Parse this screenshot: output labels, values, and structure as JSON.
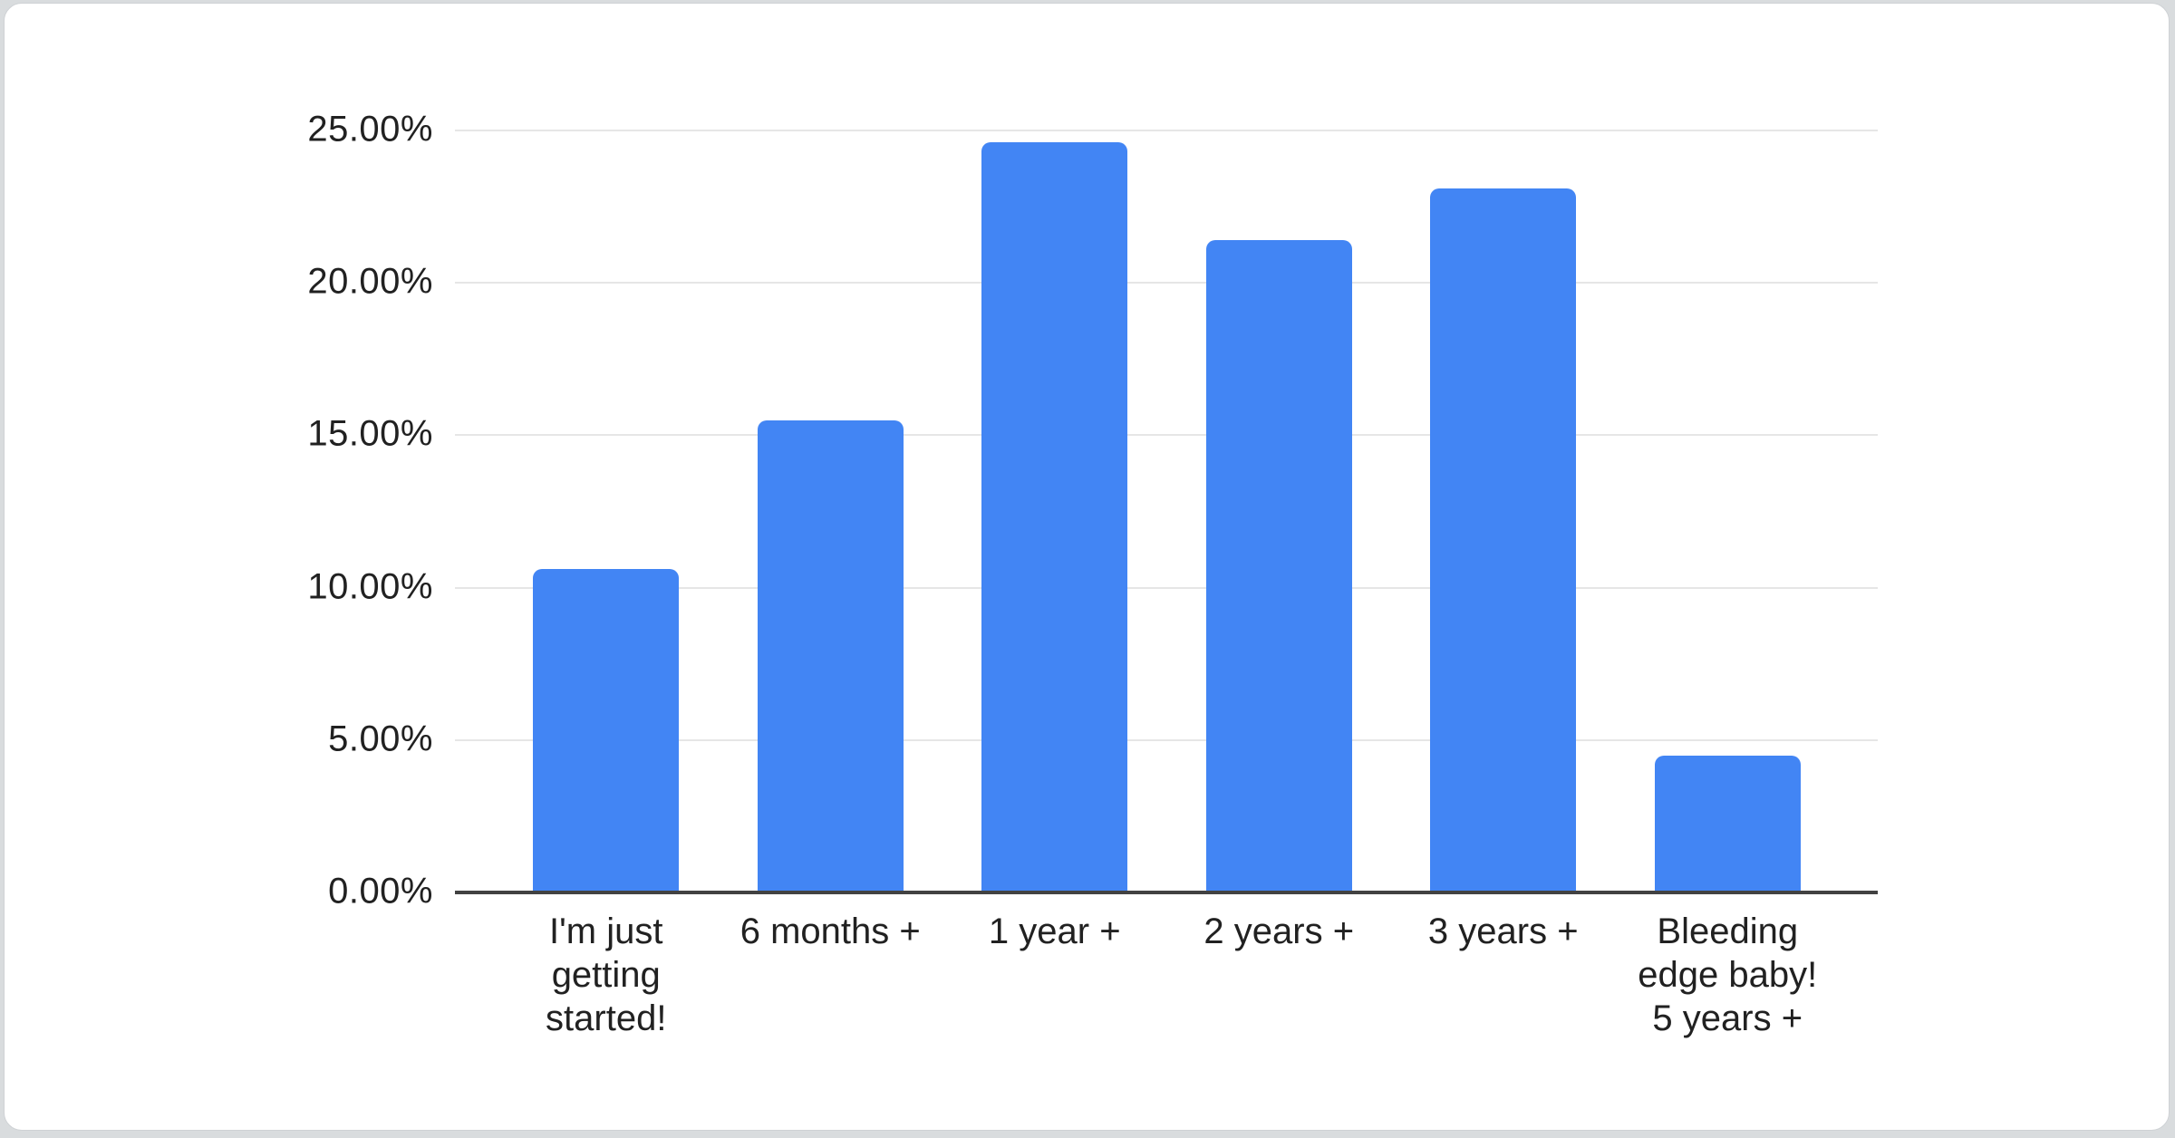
{
  "page": {
    "background_color": "#d9dcde",
    "card_color": "#ffffff"
  },
  "chart_data": {
    "type": "bar",
    "title": "",
    "xlabel": "",
    "ylabel": "",
    "categories": [
      "I'm just\ngetting\nstarted!",
      "6 months +",
      "1 year +",
      "2 years +",
      "3 years +",
      "Bleeding\nedge baby!\n5 years +"
    ],
    "values": [
      10.6,
      15.5,
      24.6,
      21.4,
      23.1,
      4.5
    ],
    "unit": "%",
    "y_ticks": [
      {
        "label": "25.00%",
        "value": 25
      },
      {
        "label": "20.00%",
        "value": 20
      },
      {
        "label": "15.00%",
        "value": 15
      },
      {
        "label": "10.00%",
        "value": 10
      },
      {
        "label": "5.00%",
        "value": 5
      },
      {
        "label": "0.00%",
        "value": 0
      }
    ],
    "ylim": [
      0,
      25
    ],
    "grid": "horizontal",
    "legend_position": "none",
    "bar_color": "#4285f4",
    "gridline_color": "#e6e6e6",
    "axis_line_color": "#424242",
    "text_color": "#212121"
  }
}
